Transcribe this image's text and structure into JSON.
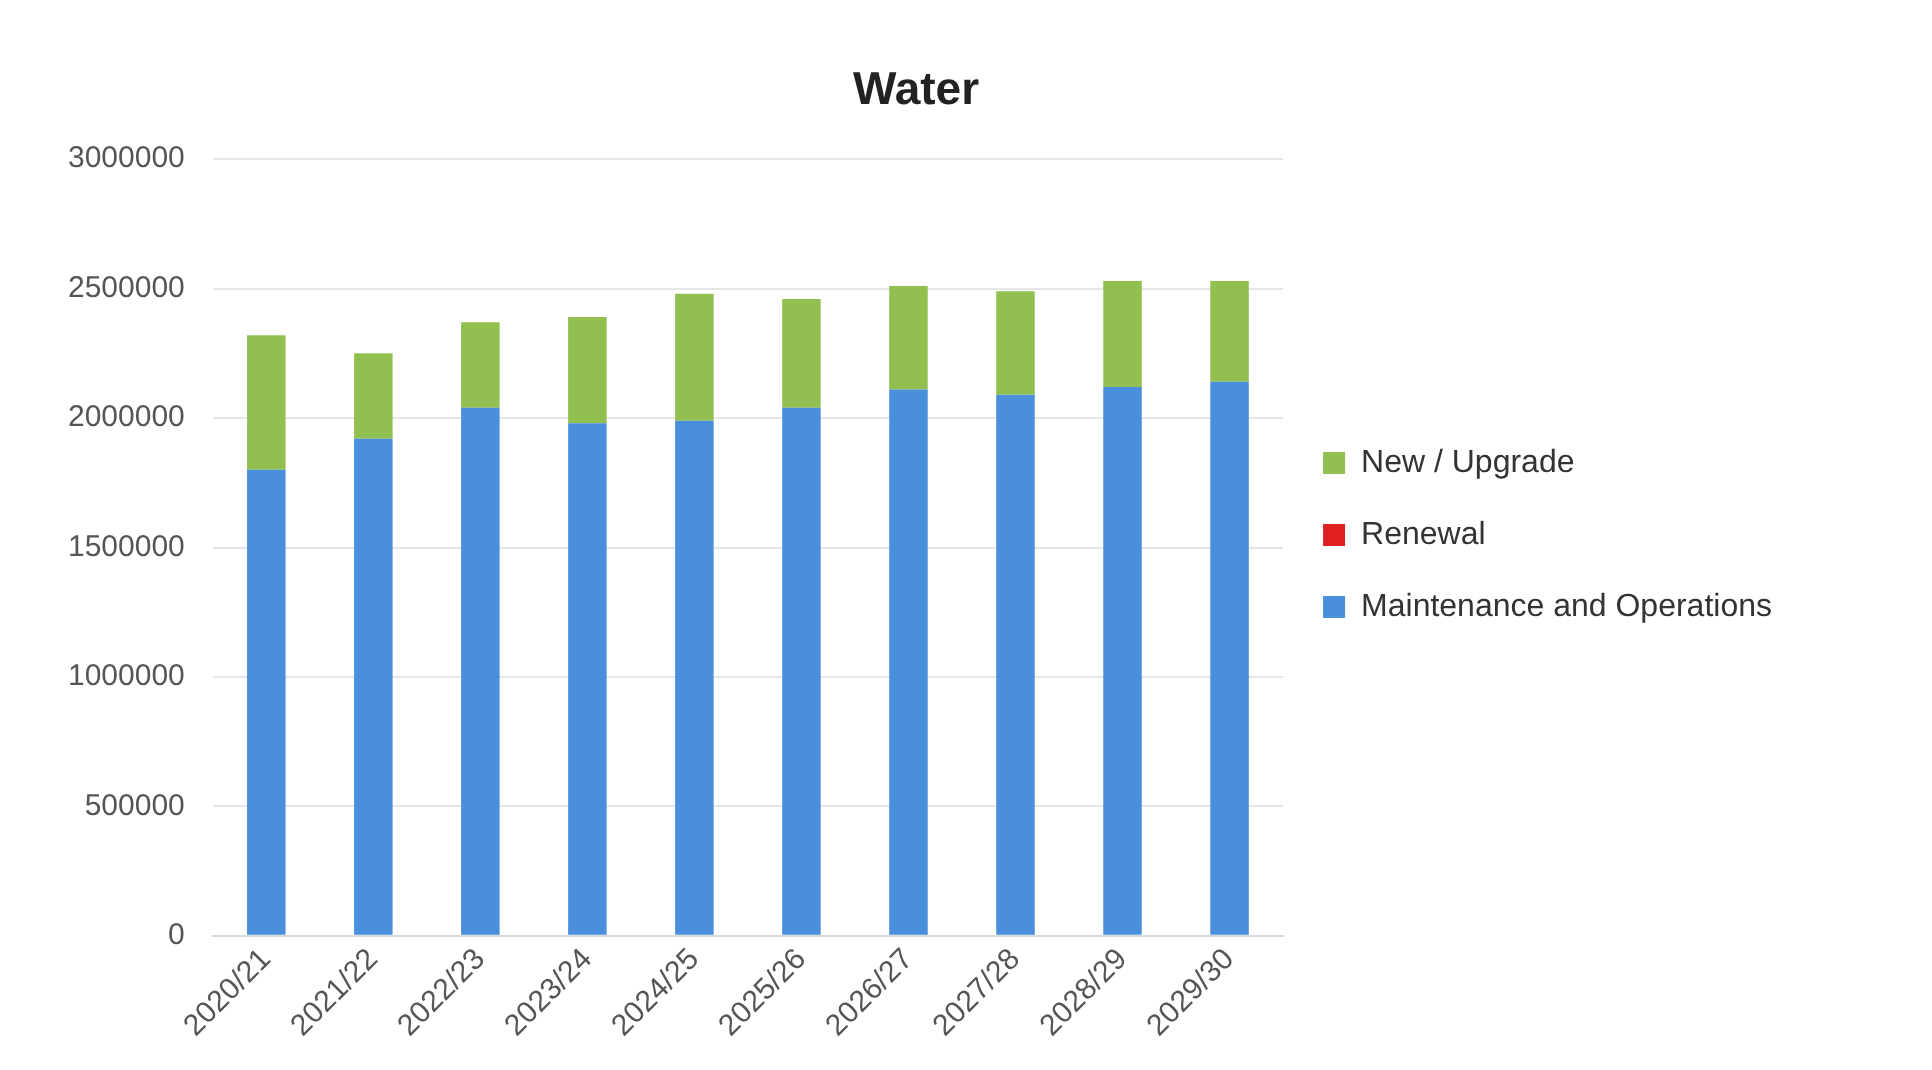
{
  "chart_data": {
    "type": "bar",
    "title": "Water",
    "stacked": true,
    "legend": "right",
    "grid": "y",
    "categories": [
      "2020/21",
      "2021/22",
      "2022/23",
      "2023/24",
      "2024/25",
      "2025/26",
      "2026/27",
      "2027/28",
      "2028/29",
      "2029/30"
    ],
    "series": [
      {
        "name": "Maintenance and Operations",
        "color": "#4a8fdc",
        "values": [
          1800000,
          1920000,
          2040000,
          1980000,
          1990000,
          2040000,
          2110000,
          2090000,
          2120000,
          2140000
        ]
      },
      {
        "name": "Renewal",
        "color": "#e02020",
        "values": [
          0,
          0,
          0,
          0,
          0,
          0,
          0,
          0,
          0,
          0
        ]
      },
      {
        "name": "New / Upgrade",
        "color": "#92c050",
        "values": [
          520000,
          330000,
          330000,
          410000,
          490000,
          420000,
          400000,
          400000,
          410000,
          390000
        ]
      }
    ],
    "ylim": [
      0,
      3000000
    ],
    "yticks": [
      0,
      500000,
      1000000,
      1500000,
      2000000,
      2500000,
      3000000
    ]
  }
}
